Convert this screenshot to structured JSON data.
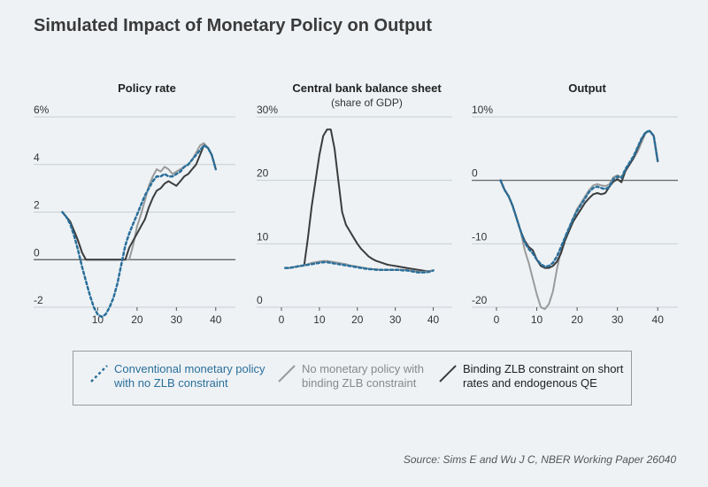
{
  "title": "Simulated Impact of Monetary Policy on Output",
  "colors": {
    "conventional": "#2a6f9a",
    "no_policy": "#9a9a9a",
    "binding": "#3c3c3c",
    "background": "#eef2f5",
    "axis": "#555555",
    "grid": "#c8cdd2"
  },
  "legend": {
    "items": [
      {
        "series_key": "conventional",
        "label": "Conventional monetary policy\nwith no ZLB constraint"
      },
      {
        "series_key": "no_policy",
        "label": "No monetary policy with\nbinding ZLB constraint"
      },
      {
        "series_key": "binding",
        "label": "Binding ZLB constraint on short\nrates and endogenous QE"
      }
    ]
  },
  "source": "Source: Sims E and Wu J C, NBER Working Paper 26040",
  "chart_data": [
    {
      "type": "line",
      "title": "Policy rate",
      "subtitle": "",
      "xlim": [
        0,
        45
      ],
      "xticks": [
        10,
        20,
        30,
        40
      ],
      "xtick_labels": [
        "10",
        "20",
        "30",
        "40"
      ],
      "ylim": [
        -2,
        6
      ],
      "yticks": [
        -2,
        0,
        2,
        4,
        6
      ],
      "ytick_labels": [
        "-2",
        "0",
        "2",
        "4",
        "6%"
      ],
      "series": [
        {
          "key": "no_policy",
          "name": "No monetary policy with binding ZLB constraint",
          "x": [
            1,
            2,
            3,
            4,
            5,
            6,
            7,
            8,
            9,
            10,
            11,
            12,
            13,
            14,
            15,
            16,
            17,
            18,
            19,
            20,
            21,
            22,
            23,
            24,
            25,
            26,
            27,
            28,
            29,
            30,
            31,
            32,
            33,
            34,
            35,
            36,
            37,
            38,
            39,
            40
          ],
          "y": [
            2,
            1.8,
            1.6,
            1.2,
            0.8,
            0.3,
            0,
            0,
            0,
            0,
            0,
            0,
            0,
            0,
            0,
            0,
            0,
            0,
            0.6,
            1.4,
            1.9,
            2.5,
            3.1,
            3.5,
            3.8,
            3.7,
            3.9,
            3.8,
            3.6,
            3.7,
            3.8,
            3.9,
            4.0,
            4.2,
            4.5,
            4.8,
            4.9,
            4.7,
            4.4,
            3.8
          ]
        },
        {
          "key": "binding",
          "name": "Binding ZLB constraint on short rates and endogenous QE",
          "x": [
            1,
            2,
            3,
            4,
            5,
            6,
            7,
            8,
            9,
            10,
            11,
            12,
            13,
            14,
            15,
            16,
            17,
            18,
            19,
            20,
            21,
            22,
            23,
            24,
            25,
            26,
            27,
            28,
            29,
            30,
            31,
            32,
            33,
            34,
            35,
            36,
            37,
            38,
            39,
            40
          ],
          "y": [
            2,
            1.8,
            1.6,
            1.2,
            0.8,
            0.3,
            0,
            0,
            0,
            0,
            0,
            0,
            0,
            0,
            0,
            0,
            0,
            0.5,
            0.8,
            1.1,
            1.4,
            1.7,
            2.2,
            2.6,
            2.9,
            3.0,
            3.2,
            3.3,
            3.2,
            3.1,
            3.3,
            3.5,
            3.6,
            3.8,
            4.0,
            4.4,
            4.8,
            4.7,
            4.4,
            3.8
          ]
        },
        {
          "key": "conventional",
          "name": "Conventional monetary policy with no ZLB constraint",
          "x": [
            1,
            2,
            3,
            4,
            5,
            6,
            7,
            8,
            9,
            10,
            11,
            12,
            13,
            14,
            15,
            16,
            17,
            18,
            19,
            20,
            21,
            22,
            23,
            24,
            25,
            26,
            27,
            28,
            29,
            30,
            31,
            32,
            33,
            34,
            35,
            36,
            37,
            38,
            39,
            40
          ],
          "y": [
            2,
            1.8,
            1.5,
            1.0,
            0.4,
            -0.3,
            -0.9,
            -1.5,
            -2.0,
            -2.3,
            -2.4,
            -2.3,
            -2.0,
            -1.6,
            -1.0,
            -0.2,
            0.6,
            1.1,
            1.5,
            1.9,
            2.3,
            2.7,
            3.0,
            3.3,
            3.5,
            3.5,
            3.6,
            3.5,
            3.5,
            3.6,
            3.7,
            3.9,
            4.0,
            4.2,
            4.4,
            4.6,
            4.8,
            4.7,
            4.4,
            3.8
          ]
        }
      ]
    },
    {
      "type": "line",
      "title": "Central bank balance sheet",
      "subtitle": "(share of GDP)",
      "xlim": [
        0,
        45
      ],
      "xticks": [
        0,
        10,
        20,
        30,
        40
      ],
      "xtick_labels": [
        "0",
        "10",
        "20",
        "30",
        "40"
      ],
      "ylim": [
        0,
        30
      ],
      "yticks": [
        0,
        10,
        20,
        30
      ],
      "ytick_labels": [
        "0",
        "10",
        "20",
        "30%"
      ],
      "series": [
        {
          "key": "binding",
          "name": "Binding ZLB constraint on short rates and endogenous QE",
          "x": [
            1,
            2,
            3,
            4,
            5,
            6,
            7,
            8,
            9,
            10,
            11,
            12,
            13,
            14,
            15,
            16,
            17,
            18,
            19,
            20,
            21,
            22,
            23,
            24,
            25,
            26,
            27,
            28,
            29,
            30,
            31,
            32,
            33,
            34,
            35,
            36,
            37,
            38,
            39,
            40
          ],
          "y": [
            6.2,
            6.2,
            6.3,
            6.4,
            6.5,
            6.6,
            11,
            16,
            20,
            24,
            27,
            28,
            28,
            25,
            20,
            15,
            13,
            12,
            11,
            10,
            9.2,
            8.6,
            8,
            7.6,
            7.3,
            7.1,
            6.9,
            6.7,
            6.6,
            6.5,
            6.4,
            6.3,
            6.2,
            6.1,
            6,
            5.9,
            5.8,
            5.7,
            5.7,
            5.8
          ]
        },
        {
          "key": "no_policy",
          "name": "No monetary policy with binding ZLB constraint",
          "x": [
            1,
            2,
            3,
            4,
            5,
            6,
            7,
            8,
            9,
            10,
            11,
            12,
            13,
            14,
            15,
            16,
            17,
            18,
            19,
            20,
            21,
            22,
            23,
            24,
            25,
            26,
            27,
            28,
            29,
            30,
            31,
            32,
            33,
            34,
            35,
            36,
            37,
            38,
            39,
            40
          ],
          "y": [
            6.2,
            6.2,
            6.3,
            6.4,
            6.5,
            6.6,
            6.8,
            7,
            7.1,
            7.2,
            7.3,
            7.3,
            7.2,
            7.1,
            7,
            6.9,
            6.8,
            6.6,
            6.5,
            6.4,
            6.3,
            6.2,
            6.1,
            6,
            6,
            5.9,
            5.9,
            5.9,
            5.9,
            5.9,
            5.9,
            5.9,
            5.9,
            5.8,
            5.7,
            5.6,
            5.6,
            5.6,
            5.7,
            5.8
          ]
        },
        {
          "key": "conventional",
          "name": "Conventional monetary policy with no ZLB constraint",
          "x": [
            1,
            2,
            3,
            4,
            5,
            6,
            7,
            8,
            9,
            10,
            11,
            12,
            13,
            14,
            15,
            16,
            17,
            18,
            19,
            20,
            21,
            22,
            23,
            24,
            25,
            26,
            27,
            28,
            29,
            30,
            31,
            32,
            33,
            34,
            35,
            36,
            37,
            38,
            39,
            40
          ],
          "y": [
            6.2,
            6.2,
            6.3,
            6.4,
            6.5,
            6.6,
            6.7,
            6.8,
            6.9,
            7,
            7.1,
            7.1,
            7,
            6.9,
            6.8,
            6.7,
            6.6,
            6.5,
            6.4,
            6.3,
            6.2,
            6.1,
            6,
            6,
            5.9,
            5.9,
            5.9,
            5.9,
            5.9,
            5.9,
            5.9,
            5.8,
            5.8,
            5.7,
            5.6,
            5.5,
            5.5,
            5.5,
            5.6,
            5.8
          ]
        }
      ]
    },
    {
      "type": "line",
      "title": "Output",
      "subtitle": "",
      "xlim": [
        0,
        45
      ],
      "xticks": [
        0,
        10,
        20,
        30,
        40
      ],
      "xtick_labels": [
        "0",
        "10",
        "20",
        "30",
        "40"
      ],
      "ylim": [
        -20,
        10
      ],
      "yticks": [
        -20,
        -10,
        0,
        10
      ],
      "ytick_labels": [
        "-20",
        "-10",
        "0",
        "10%"
      ],
      "series": [
        {
          "key": "no_policy",
          "name": "No monetary policy with binding ZLB constraint",
          "x": [
            1,
            2,
            3,
            4,
            5,
            6,
            7,
            8,
            9,
            10,
            11,
            12,
            13,
            14,
            15,
            16,
            17,
            18,
            19,
            20,
            21,
            22,
            23,
            24,
            25,
            26,
            27,
            28,
            29,
            30,
            31,
            32,
            33,
            34,
            35,
            36,
            37,
            38,
            39,
            40
          ],
          "y": [
            0,
            -1.5,
            -2.5,
            -4,
            -6,
            -8,
            -11,
            -13,
            -15.5,
            -18,
            -20,
            -20.3,
            -19.5,
            -17.5,
            -14,
            -11,
            -9,
            -7.5,
            -6,
            -4.5,
            -3.5,
            -2.5,
            -1.5,
            -0.8,
            -0.6,
            -0.8,
            -0.9,
            -0.6,
            0.5,
            0.8,
            0.5,
            1.5,
            2.5,
            3.5,
            4.5,
            6,
            7.5,
            7.8,
            7,
            3
          ]
        },
        {
          "key": "binding",
          "name": "Binding ZLB constraint on short rates and endogenous QE",
          "x": [
            1,
            2,
            3,
            4,
            5,
            6,
            7,
            8,
            9,
            10,
            11,
            12,
            13,
            14,
            15,
            16,
            17,
            18,
            19,
            20,
            21,
            22,
            23,
            24,
            25,
            26,
            27,
            28,
            29,
            30,
            31,
            32,
            33,
            34,
            35,
            36,
            37,
            38,
            39,
            40
          ],
          "y": [
            0,
            -1.5,
            -2.5,
            -4,
            -6,
            -8,
            -9.5,
            -10.5,
            -11,
            -12.5,
            -13.5,
            -13.8,
            -13.8,
            -13.5,
            -12.8,
            -11.5,
            -9.5,
            -8,
            -6.5,
            -5.5,
            -4.5,
            -3.5,
            -2.8,
            -2.2,
            -2,
            -2.2,
            -2,
            -1,
            -0.2,
            0.2,
            -0.3,
            1.5,
            2.5,
            3.5,
            5,
            6.5,
            7.5,
            7.8,
            7,
            3
          ]
        },
        {
          "key": "conventional",
          "name": "Conventional monetary policy with no ZLB constraint",
          "x": [
            1,
            2,
            3,
            4,
            5,
            6,
            7,
            8,
            9,
            10,
            11,
            12,
            13,
            14,
            15,
            16,
            17,
            18,
            19,
            20,
            21,
            22,
            23,
            24,
            25,
            26,
            27,
            28,
            29,
            30,
            31,
            32,
            33,
            34,
            35,
            36,
            37,
            38,
            39,
            40
          ],
          "y": [
            0,
            -1.5,
            -2.5,
            -4,
            -6,
            -8,
            -9.8,
            -10.8,
            -11.5,
            -12.5,
            -13.2,
            -13.6,
            -13.5,
            -13,
            -12,
            -10.5,
            -9,
            -7.5,
            -6,
            -4.8,
            -3.8,
            -2.8,
            -1.8,
            -1.2,
            -1,
            -1.2,
            -1.4,
            -1,
            0.2,
            0.6,
            0.4,
            1.8,
            2.8,
            3.8,
            5.2,
            6.6,
            7.6,
            7.8,
            7,
            3
          ]
        }
      ]
    }
  ]
}
